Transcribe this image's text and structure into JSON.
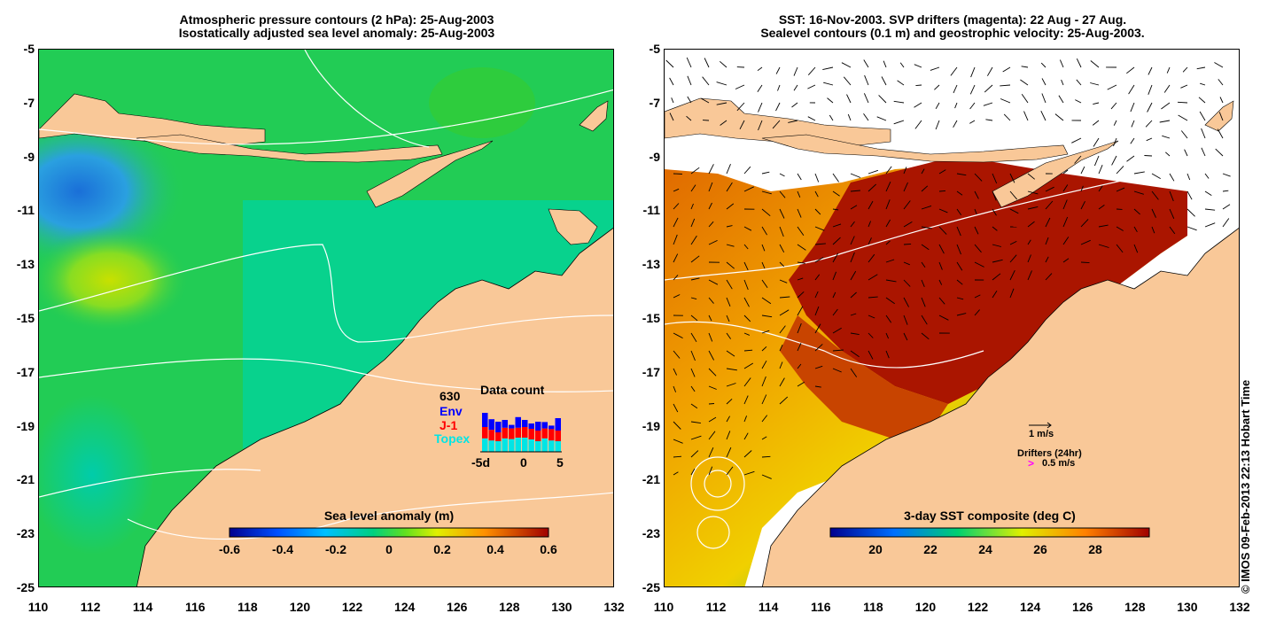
{
  "left_panel": {
    "title_line1": "Atmospheric pressure contours (2 hPa): 25-Aug-2003",
    "title_line2": "Isostatically adjusted sea level anomaly: 25-Aug-2003",
    "colorbar": {
      "label": "Sea level anomaly (m)",
      "ticks": [
        "-0.6",
        "-0.4",
        "-0.2",
        "0",
        "0.2",
        "0.4",
        "0.6"
      ]
    },
    "data_count": {
      "title": "Data count",
      "total": "630",
      "legend": [
        {
          "label": "Env",
          "color": "#0000ff"
        },
        {
          "label": "J-1",
          "color": "#ff0000"
        },
        {
          "label": "Topex",
          "color": "#00e5e5"
        }
      ],
      "x_ticks": [
        "-5d",
        "0",
        "5"
      ],
      "bars": [
        {
          "topex": 0.38,
          "j1": 0.32,
          "env": 0.4
        },
        {
          "topex": 0.32,
          "j1": 0.3,
          "env": 0.3
        },
        {
          "topex": 0.3,
          "j1": 0.25,
          "env": 0.3
        },
        {
          "topex": 0.38,
          "j1": 0.3,
          "env": 0.22
        },
        {
          "topex": 0.36,
          "j1": 0.3,
          "env": 0.1
        },
        {
          "topex": 0.4,
          "j1": 0.28,
          "env": 0.3
        },
        {
          "topex": 0.4,
          "j1": 0.3,
          "env": 0.2
        },
        {
          "topex": 0.35,
          "j1": 0.3,
          "env": 0.15
        },
        {
          "topex": 0.3,
          "j1": 0.3,
          "env": 0.25
        },
        {
          "topex": 0.38,
          "j1": 0.28,
          "env": 0.18
        },
        {
          "topex": 0.32,
          "j1": 0.32,
          "env": 0.1
        },
        {
          "topex": 0.3,
          "j1": 0.3,
          "env": 0.35
        }
      ]
    }
  },
  "right_panel": {
    "title_line1": "SST: 16-Nov-2003. SVP drifters (magenta): 22 Aug - 27 Aug.",
    "title_line2": "Sealevel contours (0.1 m) and geostrophic velocity: 25-Aug-2003.",
    "colorbar": {
      "label": "3-day SST composite (deg C)",
      "ticks": [
        "20",
        "22",
        "24",
        "26",
        "28"
      ]
    },
    "velocity_scale_label": "1 m/s",
    "drifters_label": "Drifters (24hr)",
    "drifters_arrow": ">",
    "drifters_speed": "0.5 m/s"
  },
  "axes": {
    "lat_ticks": [
      "-5",
      "-7",
      "-9",
      "-11",
      "-13",
      "-15",
      "-17",
      "-19",
      "-21",
      "-23",
      "-25"
    ],
    "lon_ticks": [
      "110",
      "112",
      "114",
      "116",
      "118",
      "120",
      "122",
      "124",
      "126",
      "128",
      "130",
      "132"
    ]
  },
  "copyright": "© IMOS 09-Feb-2013 22:13 Hobart Time",
  "colors": {
    "land": "#f9c898",
    "ocean_left": "#22cc55",
    "ocean_left_alt": "#00d4a0",
    "sst_hot": "#aa1500",
    "sst_warm": "#e06a00",
    "sst_yellow": "#f0d000"
  }
}
